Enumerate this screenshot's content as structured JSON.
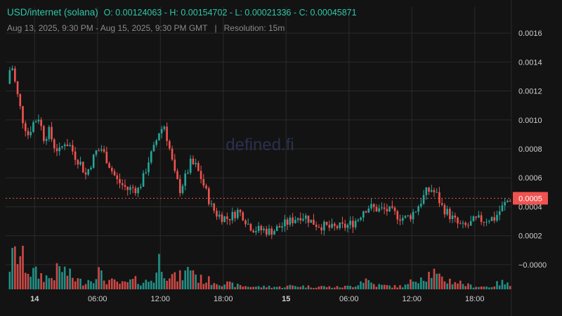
{
  "header": {
    "symbol": "USD/internet (solana)",
    "ohlc": "O: 0.00124063 - H: 0.00154702 - L: 0.00021336 - C: 0.00045871",
    "range": "Aug 13, 2025, 9:30 PM - Aug 15, 2025, 9:30 PM GMT",
    "separator": "|",
    "resolution": "Resolution: 15m"
  },
  "watermark": "defined.fi",
  "colors": {
    "background": "#131313",
    "up": "#26a69a",
    "down": "#ef5350",
    "grid": "#2a2a2a",
    "price_tag": "#ef5350"
  },
  "chart_data": {
    "type": "candlestick",
    "title": "USD/internet (solana)",
    "interval": "15m",
    "y_ticks": [
      "0.0016",
      "0.0014",
      "0.0012",
      "0.0010",
      "0.0008",
      "0.0006",
      "0.0004",
      "0.0002",
      "−0.0000"
    ],
    "y_tick_values": [
      0.0016,
      0.0014,
      0.0012,
      0.001,
      0.0008,
      0.0006,
      0.0004,
      0.0002,
      0
    ],
    "ylim": [
      -0.00018,
      0.00178
    ],
    "x_ticks": [
      {
        "label": "14",
        "bold": true,
        "hour": 2.5
      },
      {
        "label": "06:00",
        "hour": 8.5
      },
      {
        "label": "12:00",
        "hour": 14.5
      },
      {
        "label": "18:00",
        "hour": 20.5
      },
      {
        "label": "15",
        "bold": true,
        "hour": 26.5
      },
      {
        "label": "06:00",
        "hour": 32.5
      },
      {
        "label": "12:00",
        "hour": 38.5
      },
      {
        "label": "18:00",
        "hour": 44.5
      }
    ],
    "last_price": 0.00045871,
    "last_price_label": "0.0005",
    "price_path": [
      [
        0,
        0.00125
      ],
      [
        0.4,
        0.0014
      ],
      [
        0.9,
        0.0012
      ],
      [
        1.5,
        0.001
      ],
      [
        2.0,
        0.0009
      ],
      [
        2.5,
        0.00098
      ],
      [
        3.0,
        0.00102
      ],
      [
        3.5,
        0.00088
      ],
      [
        4.0,
        0.00092
      ],
      [
        4.5,
        0.00082
      ],
      [
        5.0,
        0.00078
      ],
      [
        5.5,
        0.00085
      ],
      [
        6.0,
        0.00082
      ],
      [
        6.5,
        0.00075
      ],
      [
        7.0,
        0.0007
      ],
      [
        7.5,
        0.00062
      ],
      [
        8.0,
        0.0007
      ],
      [
        8.5,
        0.00078
      ],
      [
        9.0,
        0.0008
      ],
      [
        9.5,
        0.00073
      ],
      [
        10.0,
        0.00065
      ],
      [
        10.5,
        0.00058
      ],
      [
        11.0,
        0.00055
      ],
      [
        11.5,
        0.00052
      ],
      [
        12.0,
        0.00053
      ],
      [
        12.5,
        0.00052
      ],
      [
        13.0,
        0.0006
      ],
      [
        13.5,
        0.00072
      ],
      [
        14.0,
        0.0008
      ],
      [
        14.5,
        0.00092
      ],
      [
        15.0,
        0.00096
      ],
      [
        15.5,
        0.0008
      ],
      [
        16.0,
        0.00062
      ],
      [
        16.5,
        0.00052
      ],
      [
        17.0,
        0.0006
      ],
      [
        17.5,
        0.0007
      ],
      [
        18.0,
        0.00068
      ],
      [
        18.5,
        0.0006
      ],
      [
        19.0,
        0.0005
      ],
      [
        19.5,
        0.0004
      ],
      [
        20.0,
        0.00035
      ],
      [
        20.5,
        0.00033
      ],
      [
        21.0,
        0.00032
      ],
      [
        21.5,
        0.00034
      ],
      [
        22.0,
        0.00037
      ],
      [
        22.5,
        0.00034
      ],
      [
        23.0,
        0.00028
      ],
      [
        23.5,
        0.00025
      ],
      [
        24.0,
        0.00024
      ],
      [
        24.5,
        0.00024
      ],
      [
        25.0,
        0.00023
      ],
      [
        25.5,
        0.00024
      ],
      [
        26.0,
        0.00026
      ],
      [
        26.5,
        0.00028
      ],
      [
        27.0,
        0.0003
      ],
      [
        27.5,
        0.00032
      ],
      [
        28.0,
        0.00034
      ],
      [
        28.5,
        0.00033
      ],
      [
        29.0,
        0.0003
      ],
      [
        29.5,
        0.00028
      ],
      [
        30.0,
        0.00027
      ],
      [
        30.5,
        0.00026
      ],
      [
        31.0,
        0.00025
      ],
      [
        31.5,
        0.00026
      ],
      [
        32.0,
        0.00026
      ],
      [
        32.5,
        0.00027
      ],
      [
        33.0,
        0.00029
      ],
      [
        33.5,
        0.00032
      ],
      [
        34.0,
        0.00038
      ],
      [
        34.5,
        0.0004
      ],
      [
        35.0,
        0.00039
      ],
      [
        35.5,
        0.00038
      ],
      [
        36.0,
        0.00038
      ],
      [
        36.5,
        0.00037
      ],
      [
        37.0,
        0.00035
      ],
      [
        37.5,
        0.00033
      ],
      [
        38.0,
        0.00032
      ],
      [
        38.5,
        0.00034
      ],
      [
        39.0,
        0.00038
      ],
      [
        39.5,
        0.00044
      ],
      [
        40.0,
        0.0005
      ],
      [
        40.5,
        0.00052
      ],
      [
        41.0,
        0.00048
      ],
      [
        41.5,
        0.0004
      ],
      [
        42.0,
        0.00036
      ],
      [
        42.5,
        0.00032
      ],
      [
        43.0,
        0.00028
      ],
      [
        43.5,
        0.00026
      ],
      [
        44.0,
        0.00027
      ],
      [
        44.5,
        0.0003
      ],
      [
        45.0,
        0.00031
      ],
      [
        45.5,
        0.00031
      ],
      [
        46.0,
        0.00032
      ],
      [
        46.5,
        0.00032
      ],
      [
        47.0,
        0.00037
      ],
      [
        47.5,
        0.00042
      ],
      [
        48.0,
        0.00046
      ]
    ],
    "volume_path": [
      [
        0,
        0.6
      ],
      [
        0.5,
        0.9
      ],
      [
        1.0,
        1.0
      ],
      [
        2.0,
        0.5
      ],
      [
        3.0,
        0.4
      ],
      [
        4.0,
        0.3
      ],
      [
        5.0,
        0.6
      ],
      [
        6.0,
        0.35
      ],
      [
        7.0,
        0.2
      ],
      [
        8.0,
        0.3
      ],
      [
        8.5,
        0.55
      ],
      [
        9.0,
        0.3
      ],
      [
        10.0,
        0.2
      ],
      [
        11.0,
        0.15
      ],
      [
        12.0,
        0.25
      ],
      [
        13.0,
        0.2
      ],
      [
        14.0,
        0.3
      ],
      [
        14.5,
        0.95
      ],
      [
        15.0,
        0.5
      ],
      [
        16.0,
        0.3
      ],
      [
        17.0,
        0.45
      ],
      [
        17.5,
        0.7
      ],
      [
        18.0,
        0.3
      ],
      [
        19.0,
        0.25
      ],
      [
        20.0,
        0.2
      ],
      [
        21.0,
        0.15
      ],
      [
        22.0,
        0.1
      ],
      [
        23.0,
        0.08
      ],
      [
        24.0,
        0.07
      ],
      [
        25.0,
        0.08
      ],
      [
        26.0,
        0.06
      ],
      [
        27.0,
        0.1
      ],
      [
        28.0,
        0.09
      ],
      [
        29.0,
        0.07
      ],
      [
        30.0,
        0.08
      ],
      [
        31.0,
        0.06
      ],
      [
        32.0,
        0.07
      ],
      [
        33.0,
        0.1
      ],
      [
        34.0,
        0.3
      ],
      [
        35.0,
        0.12
      ],
      [
        36.0,
        0.1
      ],
      [
        37.0,
        0.08
      ],
      [
        38.0,
        0.1
      ],
      [
        39.0,
        0.35
      ],
      [
        40.0,
        0.4
      ],
      [
        40.5,
        0.5
      ],
      [
        41.0,
        0.3
      ],
      [
        42.0,
        0.25
      ],
      [
        43.0,
        0.2
      ],
      [
        44.0,
        0.1
      ],
      [
        45.0,
        0.08
      ],
      [
        46.0,
        0.07
      ],
      [
        47.0,
        0.2
      ],
      [
        48.0,
        0.1
      ]
    ]
  }
}
